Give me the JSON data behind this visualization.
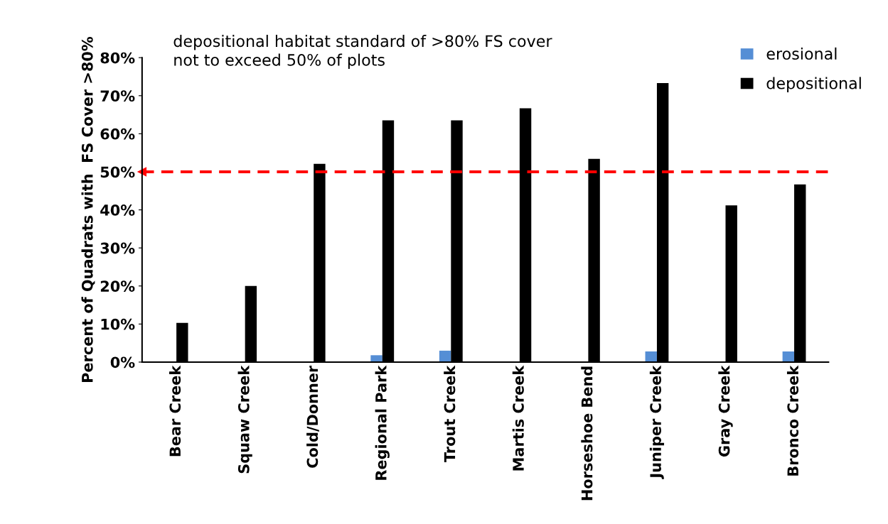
{
  "chart_data": {
    "type": "bar",
    "ylabel": "Percent of Quadrats with  FS Cover >80%",
    "categories": [
      "Bear Creek",
      "Squaw Creek",
      "Cold/Donner",
      "Regional Park",
      "Trout Creek",
      "Martis Creek",
      "Horseshoe Bend",
      "Juniper Creek",
      "Gray Creek",
      "Bronco Creek"
    ],
    "series": [
      {
        "name": "erosional",
        "color": "#558ed5",
        "values": [
          0,
          0,
          0,
          1.8,
          3.0,
          0,
          0,
          2.8,
          0,
          2.8
        ]
      },
      {
        "name": "depositional",
        "color": "#000000",
        "values": [
          10.3,
          20.0,
          52.1,
          63.5,
          63.5,
          66.7,
          53.4,
          73.3,
          41.2,
          46.7
        ]
      }
    ],
    "ylim": [
      0,
      80
    ],
    "yticks": [
      {
        "value": 0,
        "label": "0%"
      },
      {
        "value": 10,
        "label": "10%"
      },
      {
        "value": 20,
        "label": "20%"
      },
      {
        "value": 30,
        "label": "30%"
      },
      {
        "value": 40,
        "label": "40%"
      },
      {
        "value": 50,
        "label": "50%"
      },
      {
        "value": 60,
        "label": "60%"
      },
      {
        "value": 70,
        "label": "70%"
      },
      {
        "value": 80,
        "label": "80%"
      }
    ],
    "annotations": [
      "depositional habitat standard of >80% FS cover\nnot to exceed 50% of plots"
    ],
    "ref_lines": [
      {
        "axis": "y",
        "value": 50,
        "color": "#ff0000",
        "line_style": "dashed"
      }
    ],
    "grid": false,
    "legend": "top right"
  }
}
